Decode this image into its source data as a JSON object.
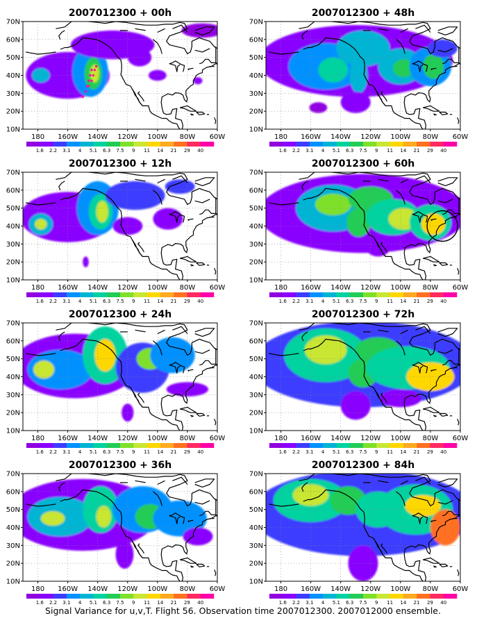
{
  "caption": "Signal Variance for u,v,T. Flight 56. Observation time 2007012300. 2007012000 ensemble.",
  "lat_labels": [
    "70N",
    "60N",
    "50N",
    "40N",
    "30N",
    "20N",
    "10N"
  ],
  "lon_labels": [
    "180",
    "160W",
    "140W",
    "120W",
    "100W",
    "80W",
    "60W"
  ],
  "colorbar": {
    "labels": [
      "1.6",
      "2.2",
      "3.1",
      "4",
      "5.1",
      "6.3",
      "7.5",
      "9",
      "11",
      "14",
      "21",
      "29",
      "40"
    ],
    "colors": [
      "#9000e0",
      "#8a00ff",
      "#3c3cff",
      "#0091ff",
      "#00b4d4",
      "#00d2a0",
      "#22cc55",
      "#7fe02a",
      "#c8e632",
      "#ffd700",
      "#ffaa20",
      "#ff7020",
      "#ff2a60",
      "#ff00a8"
    ]
  },
  "panels": [
    {
      "id": "p00",
      "title": "2007012300 + 00h",
      "flight_track": true,
      "circle": false,
      "blobs": [
        {
          "lon": -160,
          "lat": 40,
          "rx": 28,
          "ry": 13,
          "level": 1
        },
        {
          "lon": -145,
          "lat": 42,
          "rx": 12,
          "ry": 14,
          "level": 3
        },
        {
          "lon": -143,
          "lat": 41,
          "rx": 6,
          "ry": 9,
          "level": 6
        },
        {
          "lon": -142,
          "lat": 41,
          "rx": 3,
          "ry": 5,
          "level": 8
        },
        {
          "lon": -178,
          "lat": 40,
          "rx": 6,
          "ry": 4,
          "level": 4
        },
        {
          "lon": -130,
          "lat": 57,
          "rx": 28,
          "ry": 8,
          "level": 1
        },
        {
          "lon": -112,
          "lat": 50,
          "rx": 8,
          "ry": 5,
          "level": 1
        },
        {
          "lon": -100,
          "lat": 40,
          "rx": 6,
          "ry": 3,
          "level": 1
        },
        {
          "lon": -73,
          "lat": 37,
          "rx": 3,
          "ry": 2,
          "level": 1
        },
        {
          "lon": -70,
          "lat": 65,
          "rx": 14,
          "ry": 4,
          "level": 0
        }
      ]
    },
    {
      "id": "p12",
      "title": "2007012300 + 12h",
      "flight_track": false,
      "circle": false,
      "blobs": [
        {
          "lon": -160,
          "lat": 45,
          "rx": 32,
          "ry": 14,
          "level": 1
        },
        {
          "lon": -140,
          "lat": 50,
          "rx": 14,
          "ry": 15,
          "level": 3
        },
        {
          "lon": -138,
          "lat": 48,
          "rx": 8,
          "ry": 10,
          "level": 5
        },
        {
          "lon": -137,
          "lat": 48,
          "rx": 4,
          "ry": 6,
          "level": 8
        },
        {
          "lon": -178,
          "lat": 41,
          "rx": 8,
          "ry": 6,
          "level": 4
        },
        {
          "lon": -178,
          "lat": 41,
          "rx": 4,
          "ry": 3,
          "level": 8
        },
        {
          "lon": -115,
          "lat": 57,
          "rx": 20,
          "ry": 8,
          "level": 2
        },
        {
          "lon": -120,
          "lat": 40,
          "rx": 10,
          "ry": 5,
          "level": 1
        },
        {
          "lon": -93,
          "lat": 44,
          "rx": 10,
          "ry": 6,
          "level": 1
        },
        {
          "lon": -85,
          "lat": 62,
          "rx": 10,
          "ry": 4,
          "level": 2
        },
        {
          "lon": -148,
          "lat": 20,
          "rx": 2,
          "ry": 3,
          "level": 1
        }
      ]
    },
    {
      "id": "p24",
      "title": "2007012300 + 24h",
      "flight_track": false,
      "circle": false,
      "blobs": [
        {
          "lon": -155,
          "lat": 46,
          "rx": 42,
          "ry": 18,
          "level": 1
        },
        {
          "lon": -165,
          "lat": 44,
          "rx": 22,
          "ry": 11,
          "level": 3
        },
        {
          "lon": -176,
          "lat": 44,
          "rx": 7,
          "ry": 5,
          "level": 8
        },
        {
          "lon": -135,
          "lat": 52,
          "rx": 15,
          "ry": 16,
          "level": 5
        },
        {
          "lon": -135,
          "lat": 52,
          "rx": 7,
          "ry": 9,
          "level": 9
        },
        {
          "lon": -110,
          "lat": 45,
          "rx": 18,
          "ry": 14,
          "level": 2
        },
        {
          "lon": -105,
          "lat": 50,
          "rx": 9,
          "ry": 6,
          "level": 7
        },
        {
          "lon": -90,
          "lat": 52,
          "rx": 15,
          "ry": 10,
          "level": 3
        },
        {
          "lon": -80,
          "lat": 33,
          "rx": 14,
          "ry": 4,
          "level": 1
        },
        {
          "lon": -120,
          "lat": 20,
          "rx": 4,
          "ry": 5,
          "level": 1
        }
      ]
    },
    {
      "id": "p36",
      "title": "2007012300 + 36h",
      "flight_track": false,
      "circle": false,
      "blobs": [
        {
          "lon": -150,
          "lat": 47,
          "rx": 50,
          "ry": 20,
          "level": 1
        },
        {
          "lon": -165,
          "lat": 46,
          "rx": 22,
          "ry": 11,
          "level": 4
        },
        {
          "lon": -170,
          "lat": 45,
          "rx": 8,
          "ry": 4,
          "level": 8
        },
        {
          "lon": -138,
          "lat": 50,
          "rx": 12,
          "ry": 13,
          "level": 5
        },
        {
          "lon": -136,
          "lat": 46,
          "rx": 5,
          "ry": 6,
          "level": 8
        },
        {
          "lon": -110,
          "lat": 50,
          "rx": 20,
          "ry": 13,
          "level": 3
        },
        {
          "lon": -105,
          "lat": 46,
          "rx": 10,
          "ry": 7,
          "level": 6
        },
        {
          "lon": -85,
          "lat": 45,
          "rx": 18,
          "ry": 10,
          "level": 3
        },
        {
          "lon": -122,
          "lat": 25,
          "rx": 6,
          "ry": 8,
          "level": 1
        },
        {
          "lon": -73,
          "lat": 35,
          "rx": 10,
          "ry": 5,
          "level": 1
        }
      ]
    },
    {
      "id": "p48",
      "title": "2007012300 + 48h",
      "flight_track": false,
      "circle": false,
      "blobs": [
        {
          "lon": -130,
          "lat": 48,
          "rx": 65,
          "ry": 20,
          "level": 1
        },
        {
          "lon": -150,
          "lat": 45,
          "rx": 25,
          "ry": 13,
          "level": 3
        },
        {
          "lon": -145,
          "lat": 43,
          "rx": 10,
          "ry": 7,
          "level": 5
        },
        {
          "lon": -125,
          "lat": 55,
          "rx": 18,
          "ry": 10,
          "level": 4
        },
        {
          "lon": -128,
          "lat": 40,
          "rx": 6,
          "ry": 10,
          "level": 4
        },
        {
          "lon": -100,
          "lat": 45,
          "rx": 15,
          "ry": 10,
          "level": 4
        },
        {
          "lon": -98,
          "lat": 44,
          "rx": 7,
          "ry": 5,
          "level": 6
        },
        {
          "lon": -80,
          "lat": 45,
          "rx": 14,
          "ry": 11,
          "level": 3
        },
        {
          "lon": -78,
          "lat": 45,
          "rx": 7,
          "ry": 7,
          "level": 6
        },
        {
          "lon": -72,
          "lat": 55,
          "rx": 10,
          "ry": 5,
          "level": 2
        },
        {
          "lon": -130,
          "lat": 25,
          "rx": 10,
          "ry": 6,
          "level": 1
        },
        {
          "lon": -155,
          "lat": 22,
          "rx": 6,
          "ry": 3,
          "level": 0
        }
      ]
    },
    {
      "id": "p60",
      "title": "2007012300 + 60h",
      "flight_track": false,
      "circle": true,
      "blobs": [
        {
          "lon": -125,
          "lat": 47,
          "rx": 70,
          "ry": 22,
          "level": 1
        },
        {
          "lon": -145,
          "lat": 50,
          "rx": 25,
          "ry": 13,
          "level": 4
        },
        {
          "lon": -145,
          "lat": 52,
          "rx": 12,
          "ry": 6,
          "level": 7
        },
        {
          "lon": -120,
          "lat": 55,
          "rx": 15,
          "ry": 7,
          "level": 6
        },
        {
          "lon": -128,
          "lat": 42,
          "rx": 8,
          "ry": 8,
          "level": 6
        },
        {
          "lon": -105,
          "lat": 45,
          "rx": 18,
          "ry": 10,
          "level": 5
        },
        {
          "lon": -98,
          "lat": 44,
          "rx": 10,
          "ry": 6,
          "level": 8
        },
        {
          "lon": -80,
          "lat": 42,
          "rx": 14,
          "ry": 10,
          "level": 5
        },
        {
          "lon": -78,
          "lat": 41,
          "rx": 8,
          "ry": 6,
          "level": 9
        },
        {
          "lon": -115,
          "lat": 28,
          "rx": 8,
          "ry": 5,
          "level": 1
        }
      ]
    },
    {
      "id": "p72",
      "title": "2007012300 + 72h",
      "flight_track": false,
      "circle": false,
      "blobs": [
        {
          "lon": -125,
          "lat": 47,
          "rx": 75,
          "ry": 24,
          "level": 2
        },
        {
          "lon": -150,
          "lat": 52,
          "rx": 28,
          "ry": 15,
          "level": 5
        },
        {
          "lon": -150,
          "lat": 55,
          "rx": 14,
          "ry": 8,
          "level": 8
        },
        {
          "lon": -115,
          "lat": 55,
          "rx": 15,
          "ry": 7,
          "level": 6
        },
        {
          "lon": -125,
          "lat": 42,
          "rx": 10,
          "ry": 8,
          "level": 6
        },
        {
          "lon": -95,
          "lat": 45,
          "rx": 28,
          "ry": 12,
          "level": 5
        },
        {
          "lon": -80,
          "lat": 40,
          "rx": 16,
          "ry": 8,
          "level": 9
        },
        {
          "lon": -130,
          "lat": 24,
          "rx": 10,
          "ry": 8,
          "level": 1
        },
        {
          "lon": -100,
          "lat": 28,
          "rx": 14,
          "ry": 5,
          "level": 1
        }
      ]
    },
    {
      "id": "p84",
      "title": "2007012300 + 84h",
      "flight_track": false,
      "circle": false,
      "blobs": [
        {
          "lon": -125,
          "lat": 48,
          "rx": 75,
          "ry": 24,
          "level": 2
        },
        {
          "lon": -160,
          "lat": 55,
          "rx": 25,
          "ry": 12,
          "level": 5
        },
        {
          "lon": -160,
          "lat": 58,
          "rx": 12,
          "ry": 6,
          "level": 8
        },
        {
          "lon": -135,
          "lat": 55,
          "rx": 12,
          "ry": 8,
          "level": 6
        },
        {
          "lon": -115,
          "lat": 50,
          "rx": 15,
          "ry": 10,
          "level": 5
        },
        {
          "lon": -90,
          "lat": 50,
          "rx": 25,
          "ry": 14,
          "level": 5
        },
        {
          "lon": -85,
          "lat": 52,
          "rx": 12,
          "ry": 6,
          "level": 9
        },
        {
          "lon": -70,
          "lat": 40,
          "rx": 10,
          "ry": 10,
          "level": 11
        },
        {
          "lon": -125,
          "lat": 20,
          "rx": 10,
          "ry": 10,
          "level": 1
        }
      ]
    }
  ]
}
